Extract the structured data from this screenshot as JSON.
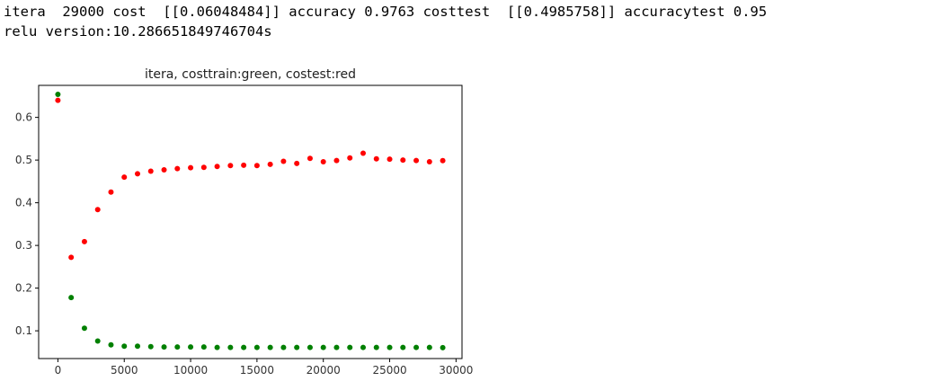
{
  "output": {
    "line1": "itera  29000 cost  [[0.06048484]] accuracy 0.9763 costtest  [[0.4985758]] accuracytest 0.95",
    "line2": "relu version:10.286651849746704s"
  },
  "chart_data": {
    "type": "scatter",
    "title": "itera, costtrain:green, costest:red",
    "xlabel": "",
    "ylabel": "",
    "xlim": [
      -1450,
      30450
    ],
    "ylim": [
      0.035,
      0.675
    ],
    "xticks": [
      0,
      5000,
      10000,
      15000,
      20000,
      25000,
      30000
    ],
    "yticks": [
      0.1,
      0.2,
      0.3,
      0.4,
      0.5,
      0.6
    ],
    "grid": false,
    "x": [
      0,
      1000,
      2000,
      3000,
      4000,
      5000,
      6000,
      7000,
      8000,
      9000,
      10000,
      11000,
      12000,
      13000,
      14000,
      15000,
      16000,
      17000,
      18000,
      19000,
      20000,
      21000,
      22000,
      23000,
      24000,
      25000,
      26000,
      27000,
      28000,
      29000
    ],
    "series": [
      {
        "color": "#008000",
        "values": [
          0.654,
          0.178,
          0.106,
          0.076,
          0.067,
          0.064,
          0.064,
          0.063,
          0.062,
          0.062,
          0.062,
          0.062,
          0.061,
          0.061,
          0.061,
          0.061,
          0.061,
          0.061,
          0.061,
          0.061,
          0.061,
          0.061,
          0.061,
          0.061,
          0.061,
          0.061,
          0.061,
          0.061,
          0.061,
          0.0605
        ]
      },
      {
        "color": "#ff0000",
        "values": [
          0.64,
          0.272,
          0.309,
          0.384,
          0.425,
          0.46,
          0.468,
          0.474,
          0.477,
          0.48,
          0.482,
          0.483,
          0.485,
          0.487,
          0.488,
          0.487,
          0.49,
          0.497,
          0.492,
          0.504,
          0.496,
          0.499,
          0.505,
          0.516,
          0.503,
          0.502,
          0.5,
          0.499,
          0.496,
          0.4986
        ]
      }
    ]
  }
}
